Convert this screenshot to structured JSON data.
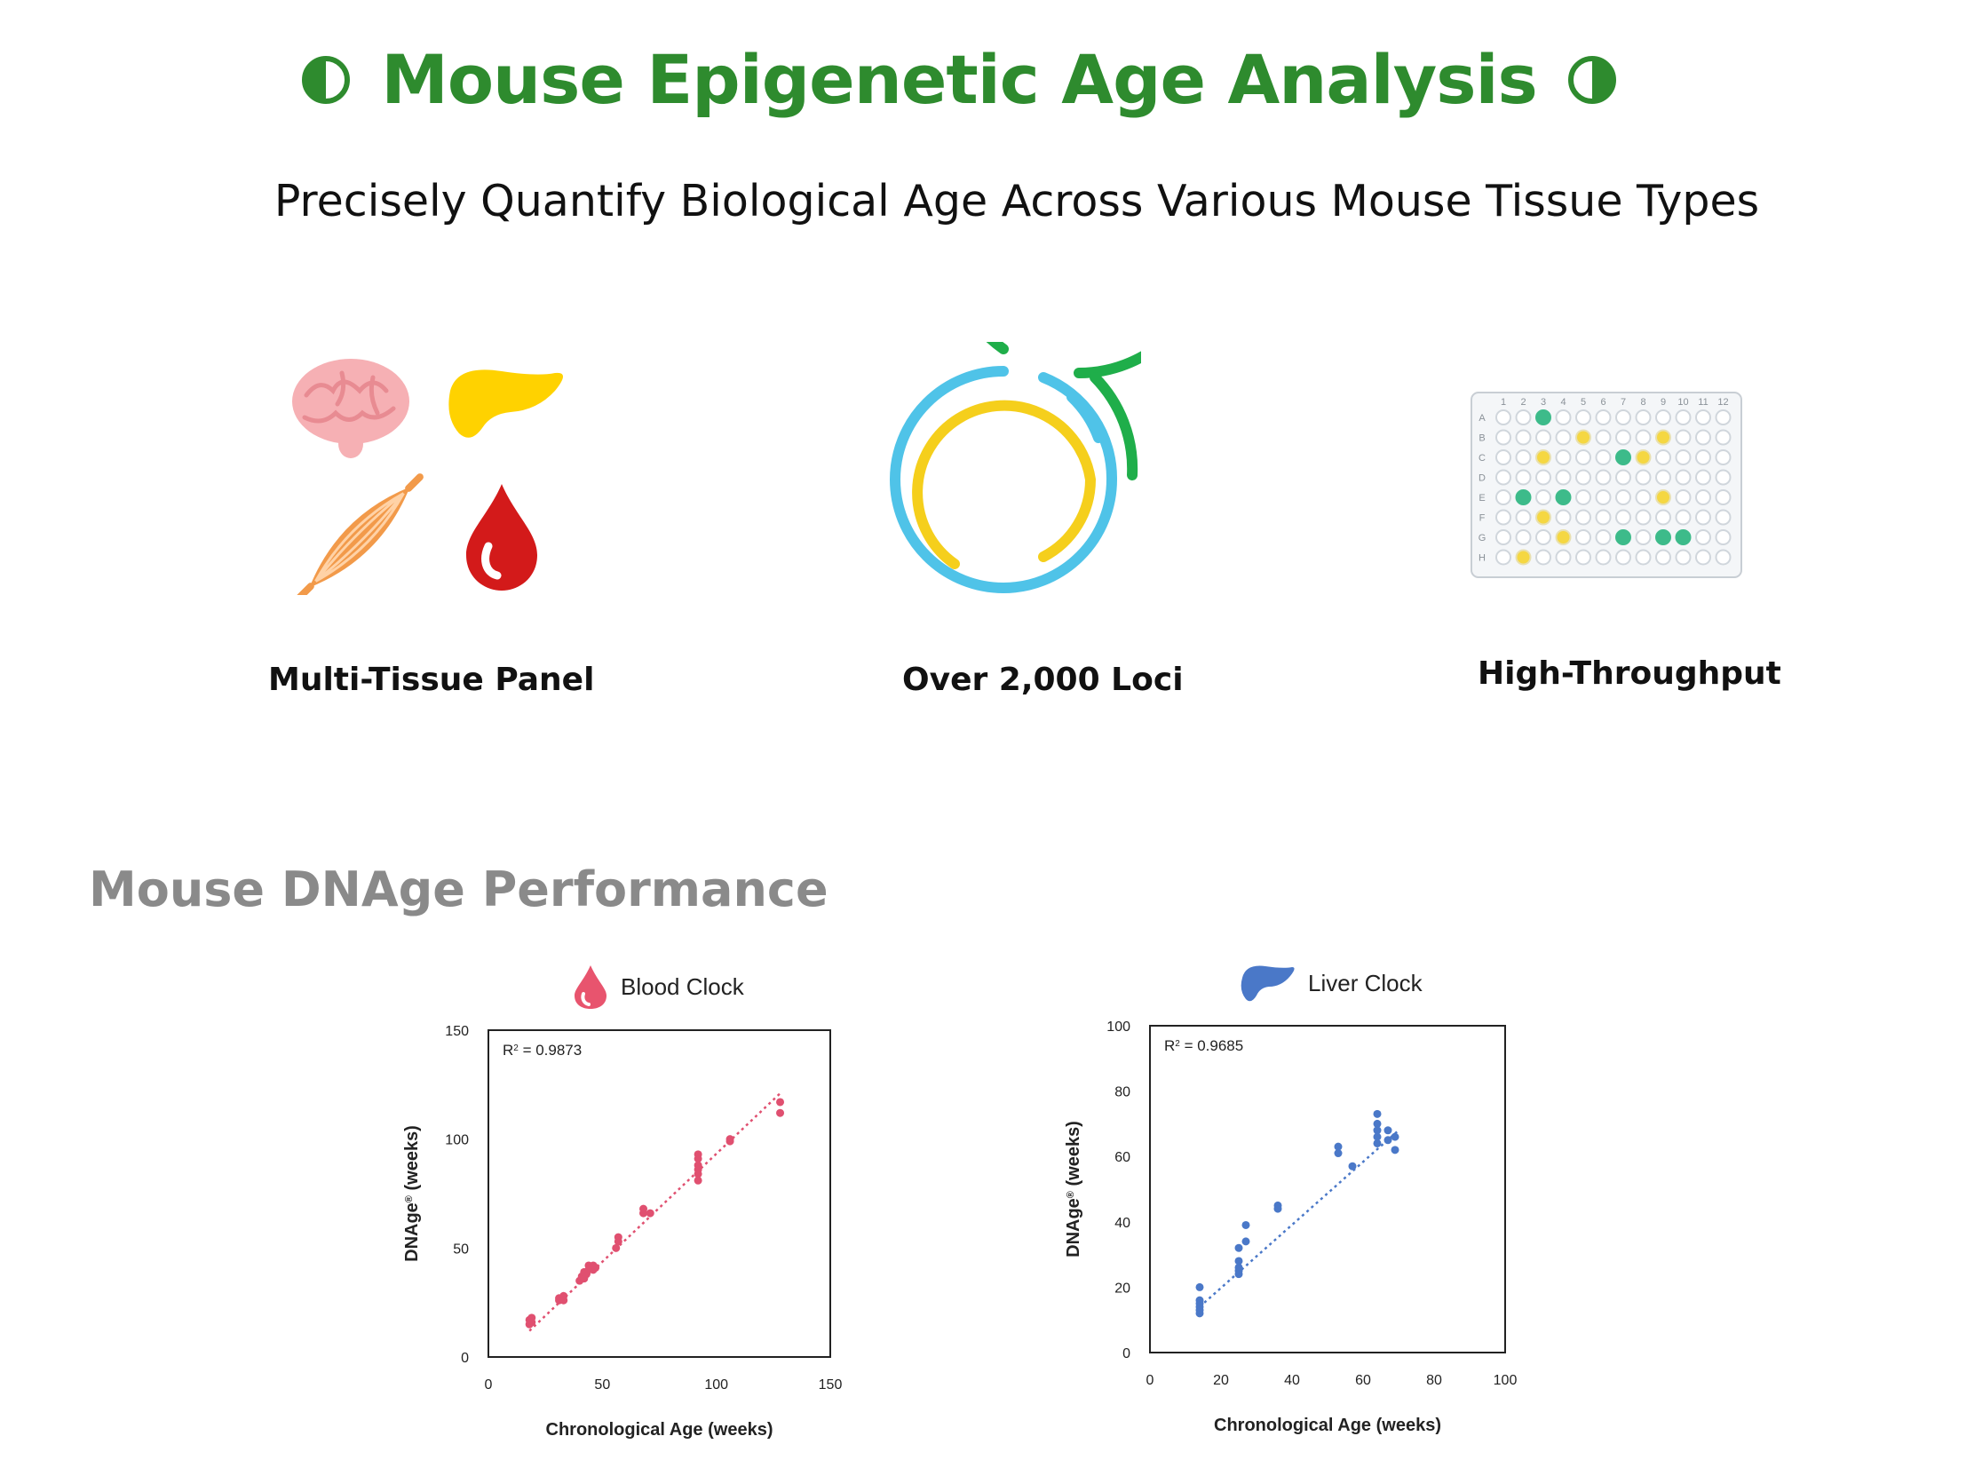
{
  "header": {
    "title": "Mouse Epigenetic Age Analysis",
    "subtitle": "Precisely Quantify Biological Age Across Various Mouse Tissue Types",
    "accent_color": "#2e8b2e",
    "decor_icon": "half-circle-icon"
  },
  "features": [
    {
      "label": "Multi-Tissue Panel",
      "icon": "tissue-panel-icon"
    },
    {
      "label": "Over 2,000 Loci",
      "icon": "loci-rings-icon"
    },
    {
      "label": "High-Throughput",
      "icon": "well-plate-icon"
    }
  ],
  "plate": {
    "columns": [
      "1",
      "2",
      "3",
      "4",
      "5",
      "6",
      "7",
      "8",
      "9",
      "10",
      "11",
      "12"
    ],
    "rows": [
      "A",
      "B",
      "C",
      "D",
      "E",
      "F",
      "G",
      "H"
    ],
    "green_wells": [
      "A3",
      "C7",
      "E2",
      "E4",
      "G7",
      "G9",
      "G10"
    ],
    "yellow_wells": [
      "B5",
      "B9",
      "C3",
      "C8",
      "E9",
      "F3",
      "G4",
      "H2"
    ],
    "colors": {
      "green": "#3dbb8a",
      "yellow": "#f5d742",
      "empty": "#d0d6dc"
    }
  },
  "section": {
    "heading": "Mouse DNAge Performance"
  },
  "chart_data": [
    {
      "type": "scatter",
      "title": "Blood Clock",
      "icon": "blood-drop-icon",
      "annotation": {
        "text": "R",
        "sup": "2",
        "value": " = 0.9873"
      },
      "xlabel": "Chronological Age (weeks)",
      "ylabel": {
        "text": "DNAge",
        "sup": "®",
        "unit": " (weeks)"
      },
      "xlim": [
        0,
        150
      ],
      "ylim": [
        0,
        150
      ],
      "xticks": [
        0,
        50,
        100,
        150
      ],
      "yticks": [
        0,
        50,
        100,
        150
      ],
      "color": "#e05070",
      "trendline": {
        "x": [
          18,
          128
        ],
        "y": [
          12,
          121
        ]
      },
      "series": [
        {
          "points": [
            [
              18,
              15
            ],
            [
              18,
              17
            ],
            [
              19,
              18
            ],
            [
              19,
              16
            ],
            [
              31,
              26
            ],
            [
              31,
              27
            ],
            [
              32,
              27
            ],
            [
              33,
              26
            ],
            [
              33,
              28
            ],
            [
              40,
              35
            ],
            [
              41,
              37
            ],
            [
              42,
              36
            ],
            [
              42,
              39
            ],
            [
              43,
              38
            ],
            [
              44,
              40
            ],
            [
              44,
              42
            ],
            [
              45,
              41
            ],
            [
              46,
              40
            ],
            [
              46,
              42
            ],
            [
              47,
              41
            ],
            [
              56,
              50
            ],
            [
              57,
              53
            ],
            [
              57,
              55
            ],
            [
              68,
              66
            ],
            [
              68,
              68
            ],
            [
              71,
              66
            ],
            [
              92,
              81
            ],
            [
              92,
              84
            ],
            [
              92,
              86
            ],
            [
              92,
              88
            ],
            [
              92,
              91
            ],
            [
              92,
              93
            ],
            [
              106,
              99
            ],
            [
              106,
              100
            ],
            [
              128,
              112
            ],
            [
              128,
              117
            ]
          ]
        }
      ]
    },
    {
      "type": "scatter",
      "title": "Liver Clock",
      "icon": "liver-icon",
      "annotation": {
        "text": "R",
        "sup": "2",
        "value": " = 0.9685"
      },
      "xlabel": "Chronological Age (weeks)",
      "ylabel": {
        "text": "DNAge",
        "sup": "®",
        "unit": " (weeks)"
      },
      "xlim": [
        0,
        100
      ],
      "ylim": [
        0,
        100
      ],
      "xticks": [
        0,
        20,
        40,
        60,
        80,
        100
      ],
      "yticks": [
        0,
        20,
        40,
        60,
        80,
        100
      ],
      "color": "#4a78c8",
      "trendline": {
        "x": [
          14,
          70
        ],
        "y": [
          14,
          68
        ]
      },
      "series": [
        {
          "points": [
            [
              14,
              12
            ],
            [
              14,
              13
            ],
            [
              14,
              14
            ],
            [
              14,
              15
            ],
            [
              14,
              16
            ],
            [
              14,
              20
            ],
            [
              25,
              24
            ],
            [
              25,
              25
            ],
            [
              25,
              26
            ],
            [
              25,
              28
            ],
            [
              25,
              32
            ],
            [
              27,
              34
            ],
            [
              27,
              39
            ],
            [
              36,
              44
            ],
            [
              36,
              45
            ],
            [
              53,
              61
            ],
            [
              53,
              63
            ],
            [
              57,
              57
            ],
            [
              64,
              64
            ],
            [
              64,
              66
            ],
            [
              64,
              68
            ],
            [
              64,
              70
            ],
            [
              64,
              73
            ],
            [
              67,
              65
            ],
            [
              67,
              68
            ],
            [
              69,
              62
            ],
            [
              69,
              66
            ]
          ]
        }
      ]
    }
  ]
}
